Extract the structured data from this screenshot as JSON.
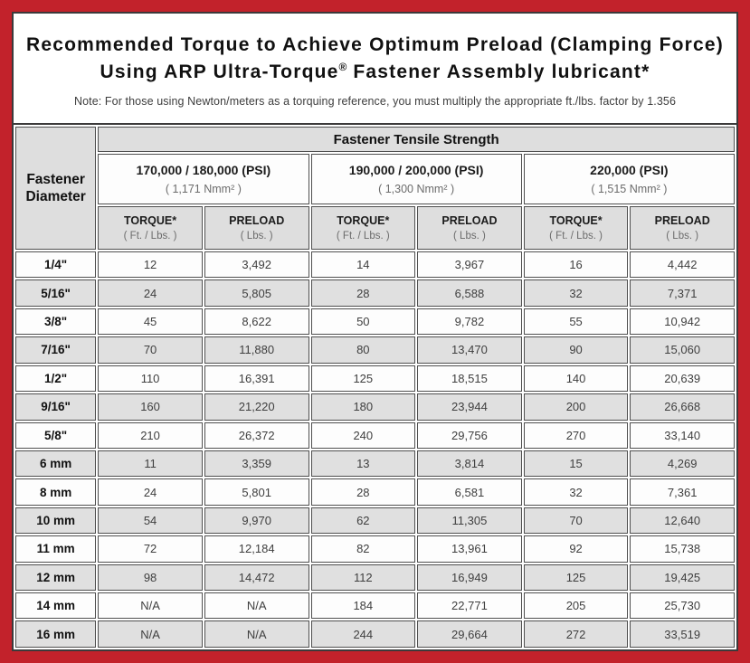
{
  "title": {
    "line1": "Recommended Torque to Achieve Optimum Preload (Clamping Force)",
    "line2_pre": "Using ARP Ultra-Torque",
    "line2_sup": "®",
    "line2_post": " Fastener Assembly lubricant*",
    "note": "Note: For those using Newton/meters as a torquing reference, you must multiply the appropriate ft./lbs. factor by 1.356"
  },
  "table": {
    "corner_header": "Fastener Diameter",
    "tensile_header": "Fastener Tensile Strength",
    "strength_groups": [
      {
        "psi": "170,000 / 180,000 (PSI)",
        "nmm": "( 1,171 Nmm² )"
      },
      {
        "psi": "190,000 / 200,000 (PSI)",
        "nmm": "( 1,300 Nmm² )"
      },
      {
        "psi": "220,000 (PSI)",
        "nmm": "( 1,515 Nmm² )"
      }
    ],
    "sub_headers": {
      "torque_label": "TORQUE*",
      "torque_unit": "( Ft. / Lbs. )",
      "preload_label": "PRELOAD",
      "preload_unit": "( Lbs. )"
    },
    "rows": [
      {
        "diameter": "1/4\"",
        "values": [
          "12",
          "3,492",
          "14",
          "3,967",
          "16",
          "4,442"
        ]
      },
      {
        "diameter": "5/16\"",
        "values": [
          "24",
          "5,805",
          "28",
          "6,588",
          "32",
          "7,371"
        ]
      },
      {
        "diameter": "3/8\"",
        "values": [
          "45",
          "8,622",
          "50",
          "9,782",
          "55",
          "10,942"
        ]
      },
      {
        "diameter": "7/16\"",
        "values": [
          "70",
          "11,880",
          "80",
          "13,470",
          "90",
          "15,060"
        ]
      },
      {
        "diameter": "1/2\"",
        "values": [
          "110",
          "16,391",
          "125",
          "18,515",
          "140",
          "20,639"
        ]
      },
      {
        "diameter": "9/16\"",
        "values": [
          "160",
          "21,220",
          "180",
          "23,944",
          "200",
          "26,668"
        ]
      },
      {
        "diameter": "5/8\"",
        "values": [
          "210",
          "26,372",
          "240",
          "29,756",
          "270",
          "33,140"
        ]
      },
      {
        "diameter": "6 mm",
        "values": [
          "11",
          "3,359",
          "13",
          "3,814",
          "15",
          "4,269"
        ]
      },
      {
        "diameter": "8 mm",
        "values": [
          "24",
          "5,801",
          "28",
          "6,581",
          "32",
          "7,361"
        ]
      },
      {
        "diameter": "10 mm",
        "values": [
          "54",
          "9,970",
          "62",
          "11,305",
          "70",
          "12,640"
        ]
      },
      {
        "diameter": "11 mm",
        "values": [
          "72",
          "12,184",
          "82",
          "13,961",
          "92",
          "15,738"
        ]
      },
      {
        "diameter": "12 mm",
        "values": [
          "98",
          "14,472",
          "112",
          "16,949",
          "125",
          "19,425"
        ]
      },
      {
        "diameter": "14 mm",
        "values": [
          "N/A",
          "N/A",
          "184",
          "22,771",
          "205",
          "25,730"
        ]
      },
      {
        "diameter": "16 mm",
        "values": [
          "N/A",
          "N/A",
          "244",
          "29,664",
          "272",
          "33,519"
        ]
      }
    ],
    "colors": {
      "frame_red": "#C2222B",
      "border_dark": "#3C3A3B",
      "cell_border": "#4F4F4F",
      "shade_gray": "#E0E0E0",
      "header_gray": "#DEDEDE"
    }
  }
}
